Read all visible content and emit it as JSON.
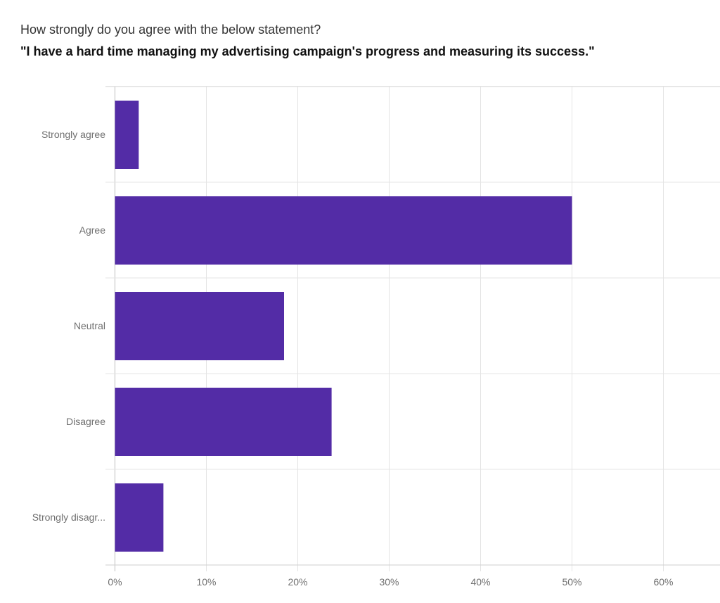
{
  "header": {
    "question": "How strongly do you agree with the below statement?",
    "statement": "\"I have a hard time managing my advertising campaign's progress and measuring its success.\""
  },
  "chart_data": {
    "type": "bar",
    "orientation": "horizontal",
    "categories": [
      "Strongly agree",
      "Agree",
      "Neutral",
      "Disagree",
      "Strongly disagr..."
    ],
    "values": [
      2.6,
      50.0,
      18.5,
      23.7,
      5.3
    ],
    "unit": "%",
    "xlim": [
      0,
      66
    ],
    "xticks": [
      0,
      10,
      20,
      30,
      40,
      50,
      60
    ],
    "xtick_labels": [
      "0%",
      "10%",
      "20%",
      "30%",
      "40%",
      "50%",
      "60%"
    ],
    "grid": true,
    "bar_color": "#532ca6"
  }
}
